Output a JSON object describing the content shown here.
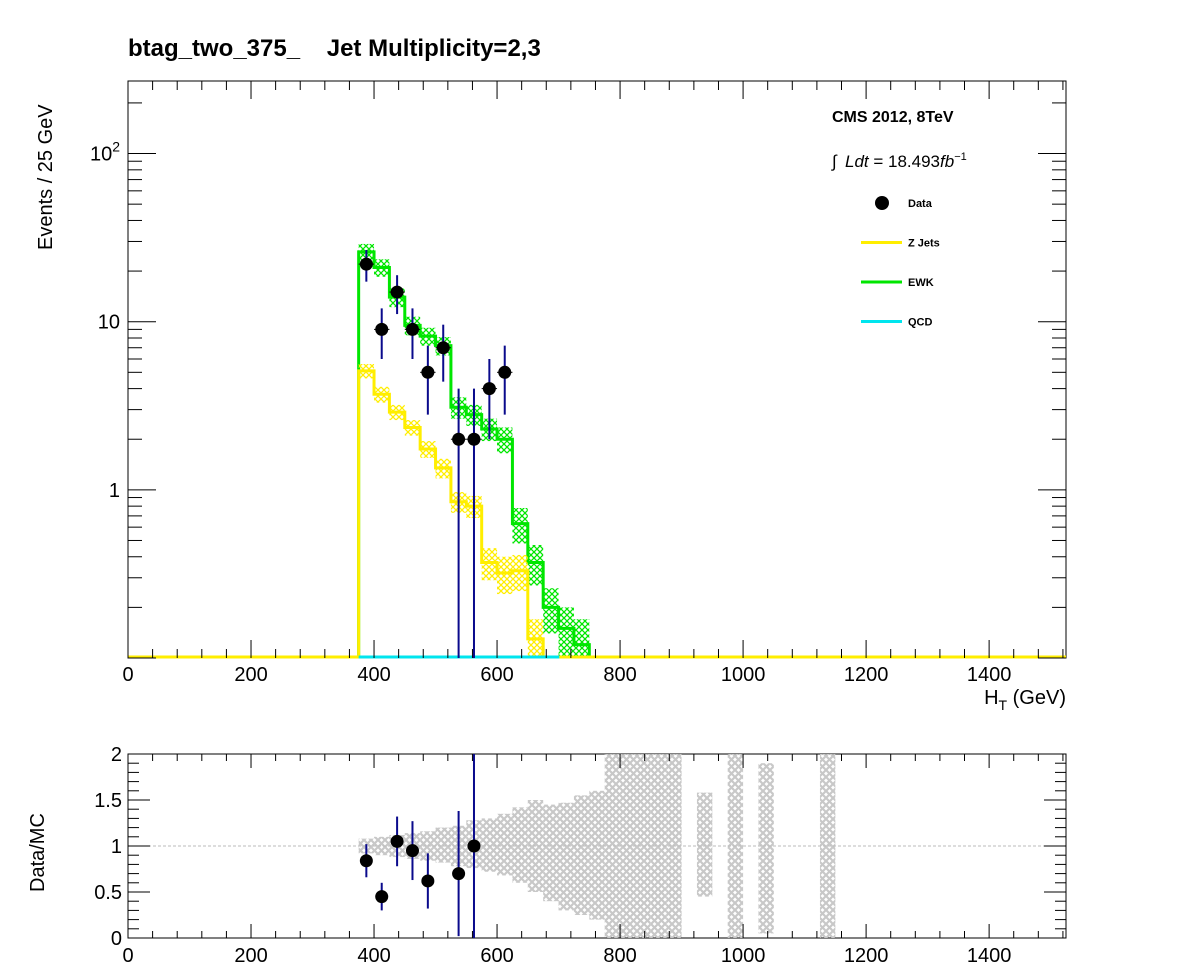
{
  "chart_data": [
    {
      "type": "histogram-stacked",
      "title": "btag_two_375_    Jet Multiplicity=2,3",
      "xlabel": "H_T (GeV)",
      "ylabel": "Events / 25 GeV",
      "xlim": [
        0,
        1525
      ],
      "ylim": [
        0.1,
        270
      ],
      "yscale": "log",
      "x_ticks": [
        "0",
        "200",
        "400",
        "600",
        "800",
        "1000",
        "1200",
        "1400"
      ],
      "y_ticks": [
        "1",
        "10",
        "10^2"
      ],
      "bin_width": 25,
      "annotations": [
        "CMS 2012, 8TeV",
        "∫Ldt = 18.493fb^-1"
      ],
      "legend_position": "top-right",
      "series": [
        {
          "name": "EWK",
          "color": "#00e600",
          "kind": "stacked-histogram-total",
          "bin_low_edges": [
            375,
            400,
            425,
            450,
            475,
            500,
            525,
            550,
            575,
            600,
            625,
            650,
            675,
            700,
            725
          ],
          "values": [
            26,
            21,
            14,
            9.5,
            8.2,
            7.2,
            3.1,
            2.8,
            2.3,
            2.0,
            0.63,
            0.37,
            0.2,
            0.15,
            0.12
          ],
          "errors": [
            3,
            2.5,
            1.8,
            1.2,
            1.0,
            0.9,
            0.45,
            0.4,
            0.35,
            0.35,
            0.15,
            0.1,
            0.06,
            0.05,
            0.05
          ]
        },
        {
          "name": "Z Jets",
          "color": "#ffee00",
          "kind": "histogram",
          "bin_low_edges": [
            375,
            400,
            425,
            450,
            475,
            500,
            525,
            550,
            575,
            600,
            625,
            650
          ],
          "values": [
            5.1,
            3.7,
            2.9,
            2.35,
            1.75,
            1.35,
            0.85,
            0.8,
            0.37,
            0.32,
            0.33,
            0.13
          ],
          "errors": [
            0.5,
            0.4,
            0.3,
            0.25,
            0.2,
            0.18,
            0.12,
            0.12,
            0.08,
            0.08,
            0.08,
            0.04
          ]
        },
        {
          "name": "QCD",
          "color": "#00e5ee",
          "kind": "histogram",
          "bin_low_edges": [
            375,
            400,
            425,
            450,
            475,
            500,
            525,
            550,
            575,
            600,
            625,
            650,
            675,
            700,
            725
          ],
          "values": [
            0,
            0,
            0,
            0,
            0,
            0,
            0,
            0,
            0,
            0,
            0,
            0,
            0,
            0,
            0
          ]
        },
        {
          "name": "Data",
          "color": "#000000",
          "error_color": "#0a0a8c",
          "kind": "points",
          "x": [
            387.5,
            412.5,
            437.5,
            462.5,
            487.5,
            512.5,
            537.5,
            562.5,
            587.5,
            612.5
          ],
          "values": [
            22,
            9,
            15,
            9,
            5,
            7,
            2,
            2,
            4,
            5
          ],
          "err_low": [
            4.7,
            3,
            3.9,
            3,
            2.2,
            2.6,
            2.0,
            2.0,
            2.0,
            2.2
          ],
          "err_high": [
            4.7,
            3,
            3.9,
            3,
            2.2,
            2.6,
            2.0,
            2.0,
            2.0,
            2.2
          ]
        }
      ]
    },
    {
      "type": "ratio",
      "ylabel": "Data/MC",
      "xlim": [
        0,
        1525
      ],
      "ylim": [
        0,
        2
      ],
      "x_ticks": [
        "0",
        "200",
        "400",
        "600",
        "800",
        "1000",
        "1200",
        "1400"
      ],
      "y_ticks": [
        "0",
        "0.5",
        "1",
        "1.5",
        "2"
      ],
      "reference_line": 1,
      "uncertainty_color": "#c8c8c8",
      "band_bin_low_edges": [
        375,
        400,
        425,
        450,
        475,
        500,
        525,
        550,
        575,
        600,
        625,
        650,
        675,
        700,
        725,
        750,
        775,
        800,
        825,
        850,
        875,
        925,
        975,
        1025,
        1125
      ],
      "band_bin_width": 25,
      "band_low": [
        0.92,
        0.9,
        0.88,
        0.86,
        0.84,
        0.82,
        0.78,
        0.76,
        0.72,
        0.68,
        0.6,
        0.5,
        0.4,
        0.3,
        0.25,
        0.2,
        0,
        0,
        0,
        0,
        0,
        0.45,
        0,
        0.05,
        0
      ],
      "band_high": [
        1.08,
        1.1,
        1.12,
        1.14,
        1.16,
        1.2,
        1.22,
        1.28,
        1.3,
        1.35,
        1.42,
        1.5,
        1.45,
        1.47,
        1.55,
        1.6,
        2,
        2,
        2,
        2,
        2,
        1.58,
        2,
        1.9,
        2
      ],
      "points": {
        "x": [
          387.5,
          412.5,
          437.5,
          462.5,
          487.5,
          537.5,
          562.5
        ],
        "values": [
          0.84,
          0.45,
          1.05,
          0.95,
          0.62,
          0.7,
          1.0
        ],
        "errors": [
          0.18,
          0.15,
          0.27,
          0.32,
          0.3,
          0.68,
          1.0
        ]
      }
    }
  ]
}
